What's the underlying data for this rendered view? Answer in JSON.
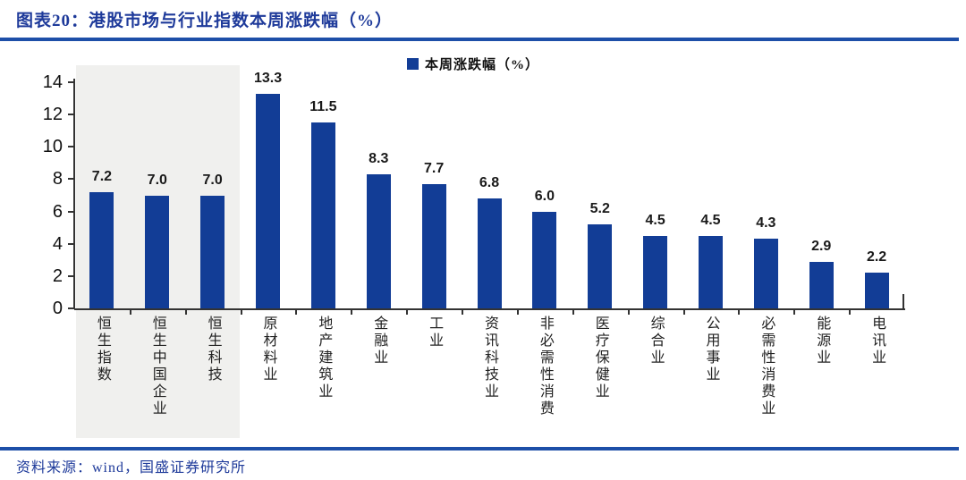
{
  "header": {
    "title": "图表20：港股市场与行业指数本周涨跌幅（%）"
  },
  "footer": {
    "source": "资料来源：wind，国盛证券研究所"
  },
  "colors": {
    "bar": "#123d96",
    "rule": "#1d4fa8",
    "navy_text": "#1e3a9a",
    "highlight_bg": "#f0f0ee",
    "axis": "#333333"
  },
  "chart_data": {
    "type": "bar",
    "title": "港股市场与行业指数本周涨跌幅（%）",
    "legend_label": "本周涨跌幅（%）",
    "legend_position": "top-center",
    "categories": [
      "恒生指数",
      "恒生中国企业",
      "恒生科技",
      "原材料业",
      "地产建筑业",
      "金融业",
      "工业",
      "资讯科技业",
      "非必需性消费",
      "医疗保健业",
      "综合业",
      "公用事业",
      "必需性消费业",
      "能源业",
      "电讯业"
    ],
    "values": [
      7.2,
      7.0,
      7.0,
      13.3,
      11.5,
      8.3,
      7.7,
      6.8,
      6.0,
      5.2,
      4.5,
      4.5,
      4.3,
      2.9,
      2.2
    ],
    "xlabel": "",
    "ylabel": "",
    "ylim": [
      0,
      14
    ],
    "yticks": [
      0,
      2,
      4,
      6,
      8,
      10,
      12,
      14
    ],
    "grid": false,
    "bar_color": "#123d96",
    "highlighted_categories": [
      "恒生指数",
      "恒生中国企业",
      "恒生科技"
    ]
  }
}
